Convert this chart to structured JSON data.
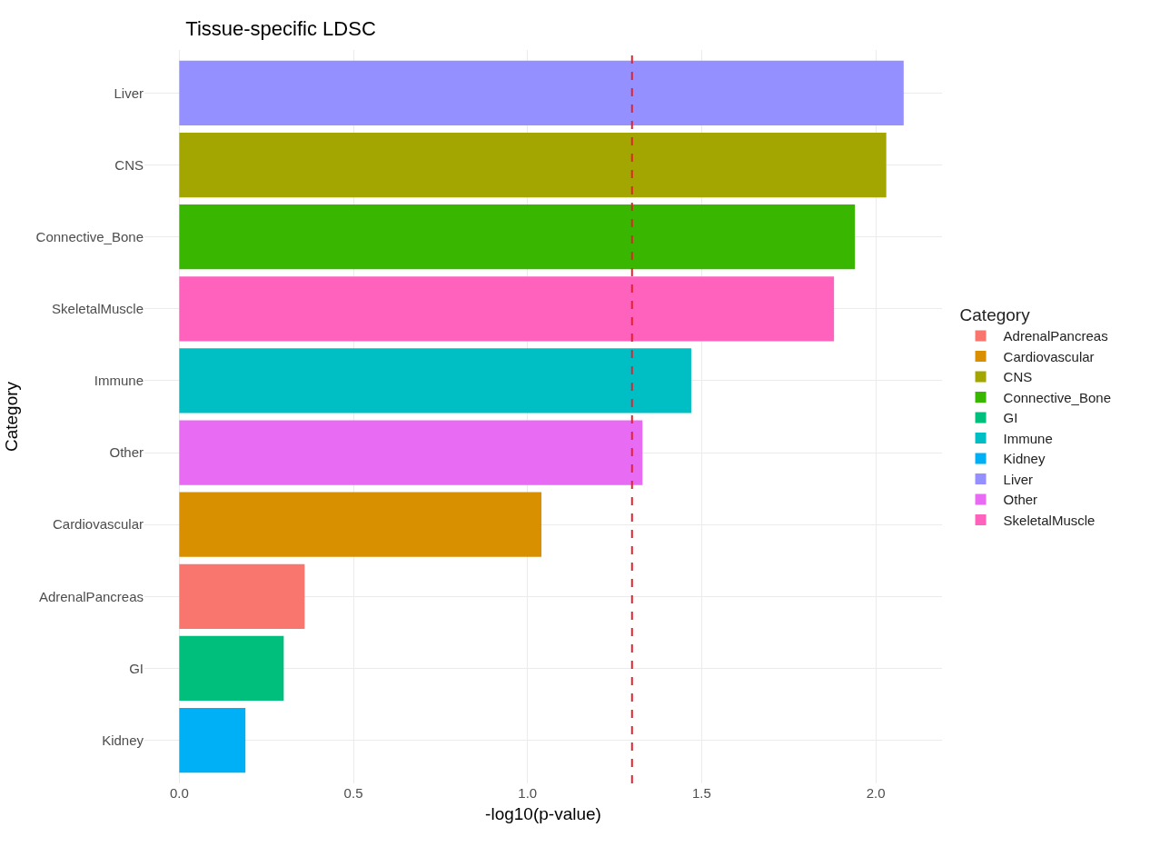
{
  "chart_data": {
    "type": "bar",
    "orientation": "horizontal",
    "title": "Tissue-specific LDSC",
    "xlabel": "-log10(p-value)",
    "ylabel": "Category",
    "legend_title": "Category",
    "categories": [
      "Liver",
      "CNS",
      "Connective_Bone",
      "SkeletalMuscle",
      "Immune",
      "Other",
      "Cardiovascular",
      "AdrenalPancreas",
      "GI",
      "Kidney"
    ],
    "series": [
      {
        "name": "AdrenalPancreas",
        "color": "#f8766d",
        "values": [
          null,
          null,
          null,
          null,
          null,
          null,
          null,
          0.36,
          null,
          null
        ]
      },
      {
        "name": "Cardiovascular",
        "color": "#d89000",
        "values": [
          null,
          null,
          null,
          null,
          null,
          null,
          1.04,
          null,
          null,
          null
        ]
      },
      {
        "name": "CNS",
        "color": "#a3a500",
        "values": [
          null,
          2.03,
          null,
          null,
          null,
          null,
          null,
          null,
          null,
          null
        ]
      },
      {
        "name": "Connective_Bone",
        "color": "#39b600",
        "values": [
          null,
          null,
          1.94,
          null,
          null,
          null,
          null,
          null,
          null,
          null
        ]
      },
      {
        "name": "GI",
        "color": "#00bf7d",
        "values": [
          null,
          null,
          null,
          null,
          null,
          null,
          null,
          null,
          0.3,
          null
        ]
      },
      {
        "name": "Immune",
        "color": "#00bfc4",
        "values": [
          null,
          null,
          null,
          null,
          1.47,
          null,
          null,
          null,
          null,
          null
        ]
      },
      {
        "name": "Kidney",
        "color": "#00b0f6",
        "values": [
          null,
          null,
          null,
          null,
          null,
          null,
          null,
          null,
          null,
          0.19
        ]
      },
      {
        "name": "Liver",
        "color": "#9590ff",
        "values": [
          2.08,
          null,
          null,
          null,
          null,
          null,
          null,
          null,
          null,
          null
        ]
      },
      {
        "name": "Other",
        "color": "#e76bf3",
        "values": [
          null,
          null,
          null,
          null,
          null,
          1.33,
          null,
          null,
          null,
          null
        ]
      },
      {
        "name": "SkeletalMuscle",
        "color": "#ff62bc",
        "values": [
          null,
          null,
          null,
          1.88,
          null,
          null,
          null,
          null,
          null,
          null
        ]
      }
    ],
    "xlim": [
      -0.1,
      2.19
    ],
    "xticks": [
      {
        "value": 0,
        "label": "0.0"
      },
      0.5,
      {
        "value": 1,
        "label": "1.0"
      },
      1.5,
      {
        "value": 2,
        "label": "2.0"
      }
    ],
    "ref_lines": [
      {
        "axis": "x",
        "value": 1.3,
        "color": "#e8202a",
        "line_style": "dashed"
      }
    ],
    "grid": true,
    "legend": "right"
  }
}
